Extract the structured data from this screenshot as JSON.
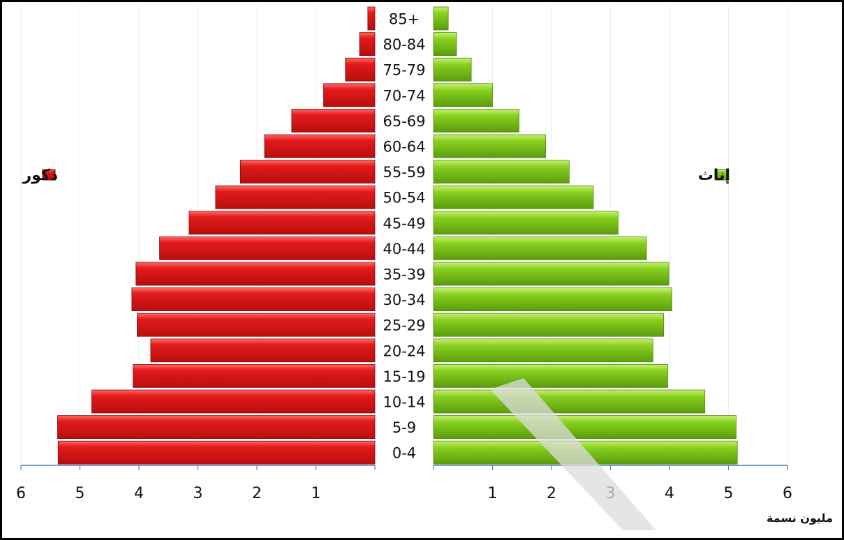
{
  "chart_data": {
    "type": "bar",
    "orientation": "horizontal-population-pyramid",
    "categories": [
      "0-4",
      "5-9",
      "10-14",
      "15-19",
      "20-24",
      "25-29",
      "30-34",
      "35-39",
      "40-44",
      "45-49",
      "50-54",
      "55-59",
      "60-64",
      "65-69",
      "70-74",
      "75-79",
      "80-84",
      "85+"
    ],
    "series": [
      {
        "name": "ذكور",
        "side": "left",
        "color": "#dd1a1a",
        "values": [
          5.37,
          5.38,
          4.8,
          4.1,
          3.8,
          4.03,
          4.12,
          4.05,
          3.65,
          3.15,
          2.7,
          2.28,
          1.87,
          1.41,
          0.87,
          0.5,
          0.26,
          0.12
        ]
      },
      {
        "name": "إناث",
        "side": "right",
        "color": "#7ac514",
        "values": [
          5.15,
          5.13,
          4.6,
          3.97,
          3.72,
          3.9,
          4.04,
          3.99,
          3.61,
          3.13,
          2.71,
          2.3,
          1.9,
          1.45,
          1.0,
          0.64,
          0.39,
          0.25
        ]
      }
    ],
    "xlim": [
      0,
      6
    ],
    "x_ticks_left": [
      "6",
      "5",
      "4",
      "3",
      "2",
      "1"
    ],
    "x_ticks_right": [
      "1",
      "2",
      "3",
      "4",
      "5",
      "6"
    ],
    "xlabel": "مليون نسمة",
    "legend_position": "sides"
  }
}
